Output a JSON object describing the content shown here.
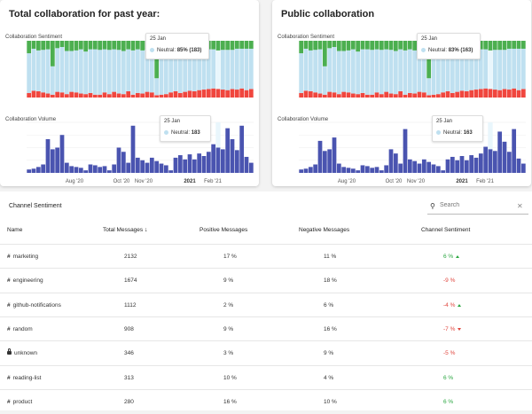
{
  "panels": [
    {
      "title": "Total collaboration for past year:",
      "sentiment_label": "Collaboration Sentiment",
      "volume_label": "Collaboration Volume",
      "tooltip_sentiment": {
        "date": "25 Jan",
        "label": "Neutral:",
        "value": "85% (183)"
      },
      "tooltip_volume": {
        "date": "25 Jan",
        "label": "Neutral:",
        "value": "183"
      }
    },
    {
      "title": "Public collaboration",
      "sentiment_label": "Collaboration Sentiment",
      "volume_label": "Collaboration Volume",
      "tooltip_sentiment": {
        "date": "25 Jan",
        "label": "Neutral:",
        "value": "83% (163)"
      },
      "tooltip_volume": {
        "date": "25 Jan",
        "label": "Neutral:",
        "value": "163"
      }
    }
  ],
  "colors": {
    "positive": "#4caf50",
    "neutral": "#bfe0f0",
    "negative": "#f0463e",
    "volume": "#4a54b0",
    "highlight": "#e9f6fc"
  },
  "chart_data": [
    {
      "type": "bar",
      "stacked": true,
      "series": [
        {
          "name": "Neutral",
          "values": [
            70,
            74,
            72,
            75,
            78,
            50,
            77,
            80,
            76,
            72,
            74,
            78,
            75,
            77,
            80,
            79,
            76,
            78,
            75,
            77,
            76,
            74,
            78,
            77,
            76,
            74,
            75,
            30,
            80,
            79,
            77,
            76,
            78,
            75,
            73,
            74,
            72,
            71,
            70,
            69,
            68,
            70,
            71,
            69,
            72,
            70,
            73,
            71
          ]
        },
        {
          "name": "Negative",
          "values": [
            8,
            12,
            11,
            9,
            7,
            5,
            10,
            9,
            6,
            10,
            9,
            7,
            6,
            8,
            5,
            5,
            9,
            6,
            10,
            7,
            6,
            11,
            5,
            8,
            7,
            10,
            9,
            4,
            5,
            6,
            9,
            11,
            8,
            10,
            12,
            11,
            13,
            14,
            15,
            16,
            15,
            14,
            13,
            15,
            14,
            16,
            13,
            15
          ]
        },
        {
          "name": "Positive",
          "values": [
            22,
            14,
            17,
            16,
            15,
            45,
            13,
            11,
            18,
            18,
            17,
            15,
            19,
            15,
            15,
            16,
            15,
            16,
            15,
            16,
            18,
            15,
            17,
            15,
            17,
            16,
            16,
            66,
            15,
            15,
            14,
            13,
            14,
            15,
            15,
            15,
            15,
            15,
            15,
            15,
            17,
            16,
            16,
            16,
            14,
            14,
            14,
            14
          ]
        }
      ],
      "ylim": [
        0,
        100
      ],
      "x_ticks": [
        "Aug '20",
        "Oct '20",
        "Nov '20",
        "2021",
        "Feb '21"
      ]
    },
    {
      "type": "bar",
      "series": [
        {
          "name": "Neutral",
          "values": [
            4,
            5,
            7,
            10,
            40,
            28,
            30,
            45,
            12,
            8,
            7,
            6,
            3,
            10,
            9,
            7,
            8,
            3,
            10,
            30,
            25,
            12,
            56,
            18,
            15,
            12,
            18,
            14,
            11,
            9,
            3,
            18,
            21,
            16,
            22,
            16,
            23,
            20,
            25,
            34,
            30,
            28,
            53,
            40,
            27,
            56,
            19,
            12
          ]
        }
      ],
      "x_ticks": [
        "Aug '20",
        "Oct '20",
        "Nov '20",
        "2021",
        "Feb '21"
      ]
    },
    {
      "type": "bar",
      "stacked": true,
      "series": [
        {
          "name": "Neutral",
          "values": [
            70,
            74,
            72,
            75,
            78,
            50,
            77,
            80,
            76,
            72,
            74,
            78,
            75,
            77,
            80,
            79,
            76,
            78,
            75,
            77,
            76,
            74,
            78,
            77,
            76,
            74,
            75,
            30,
            80,
            79,
            77,
            76,
            78,
            75,
            73,
            74,
            72,
            71,
            70,
            69,
            68,
            70,
            71,
            69,
            72,
            70,
            73,
            71
          ]
        },
        {
          "name": "Negative",
          "values": [
            8,
            12,
            11,
            9,
            7,
            5,
            10,
            9,
            6,
            10,
            9,
            7,
            6,
            8,
            5,
            5,
            9,
            6,
            10,
            7,
            6,
            11,
            5,
            8,
            7,
            10,
            9,
            4,
            5,
            6,
            9,
            11,
            8,
            10,
            12,
            11,
            13,
            14,
            15,
            16,
            15,
            14,
            13,
            15,
            14,
            16,
            13,
            15
          ]
        },
        {
          "name": "Positive",
          "values": [
            22,
            14,
            17,
            16,
            15,
            45,
            13,
            11,
            18,
            18,
            17,
            15,
            19,
            15,
            15,
            16,
            15,
            16,
            15,
            16,
            18,
            15,
            17,
            15,
            17,
            16,
            16,
            66,
            15,
            15,
            14,
            13,
            14,
            15,
            15,
            15,
            15,
            15,
            15,
            15,
            17,
            16,
            16,
            16,
            14,
            14,
            14,
            14
          ]
        }
      ],
      "ylim": [
        0,
        100
      ],
      "x_ticks": [
        "Aug '20",
        "Oct '20",
        "Nov '20",
        "2021",
        "Feb '21"
      ]
    },
    {
      "type": "bar",
      "series": [
        {
          "name": "Neutral",
          "values": [
            4,
            5,
            7,
            10,
            38,
            26,
            28,
            42,
            11,
            7,
            6,
            5,
            3,
            9,
            8,
            6,
            7,
            3,
            9,
            28,
            23,
            11,
            52,
            16,
            14,
            11,
            16,
            13,
            10,
            8,
            3,
            16,
            19,
            15,
            20,
            15,
            21,
            18,
            23,
            31,
            28,
            26,
            49,
            37,
            25,
            52,
            17,
            11
          ]
        }
      ],
      "x_ticks": [
        "Aug '20",
        "Oct '20",
        "Nov '20",
        "2021",
        "Feb '21"
      ]
    }
  ],
  "table": {
    "title": "Channel Sentiment",
    "search_placeholder": "Search",
    "headers": {
      "name": "Name",
      "total": "Total Messages",
      "positive": "Positive Messages",
      "negative": "Negative Messages",
      "sentiment": "Channel Sentiment"
    },
    "rows": [
      {
        "name": "marketing",
        "icon": "hash",
        "total": "2132",
        "positive": "17 %",
        "negative": "11 %",
        "sentiment": "6 %",
        "trend": "up"
      },
      {
        "name": "engineering",
        "icon": "hash",
        "total": "1674",
        "positive": "9 %",
        "negative": "18 %",
        "sentiment": "-9 %",
        "trend": "none"
      },
      {
        "name": "github-notifications",
        "icon": "hash",
        "total": "1112",
        "positive": "2 %",
        "negative": "6 %",
        "sentiment": "-4 %",
        "trend": "up"
      },
      {
        "name": "random",
        "icon": "hash",
        "total": "908",
        "positive": "9 %",
        "negative": "16 %",
        "sentiment": "-7 %",
        "trend": "down"
      },
      {
        "name": "unknown",
        "icon": "lock",
        "total": "346",
        "positive": "3 %",
        "negative": "9 %",
        "sentiment": "-5 %",
        "trend": "none"
      },
      {
        "name": "reading-list",
        "icon": "hash",
        "total": "313",
        "positive": "10 %",
        "negative": "4 %",
        "sentiment": "6 %",
        "trend": "none"
      },
      {
        "name": "product",
        "icon": "hash",
        "total": "280",
        "positive": "16 %",
        "negative": "10 %",
        "sentiment": "6 %",
        "trend": "none"
      }
    ]
  }
}
